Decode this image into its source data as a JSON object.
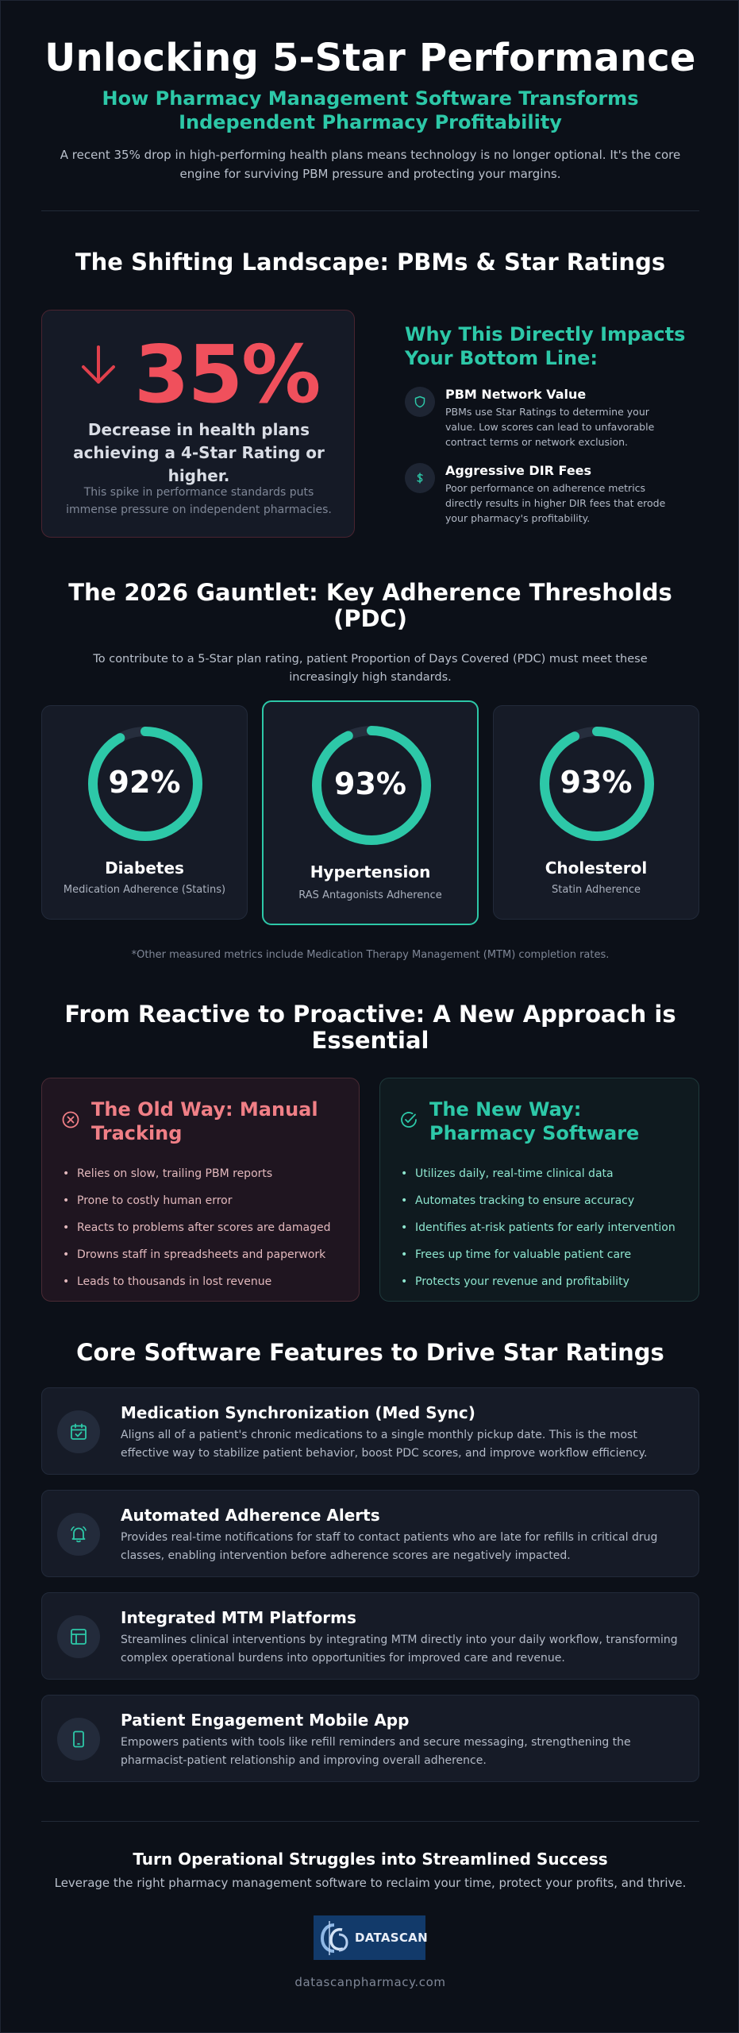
{
  "hero": {
    "title": "Unlocking 5-Star Performance",
    "subtitle_line1": "How Pharmacy Management Software Transforms",
    "subtitle_line2": "Independent Pharmacy Profitability",
    "description": "A recent 35% drop in high-performing health plans means technology is no longer optional. It's the core engine for surviving PBM pressure and protecting your margins."
  },
  "landscape": {
    "title": "The Shifting Landscape: PBMs & Star Ratings",
    "stat": {
      "value": "35%",
      "label": "Decrease in health plans achieving a 4-Star Rating or higher.",
      "note": "This spike in performance standards puts immense pressure on independent pharmacies."
    },
    "why": {
      "title": "Why This Directly Impacts Your Bottom Line:",
      "items": [
        {
          "icon": "shield-icon",
          "title": "PBM Network Value",
          "text": "PBMs use Star Ratings to determine your value. Low scores can lead to unfavorable contract terms or network exclusion."
        },
        {
          "icon": "dollar-icon",
          "title": "Aggressive DIR Fees",
          "text": "Poor performance on adherence metrics directly results in higher DIR fees that erode your pharmacy's profitability."
        }
      ]
    }
  },
  "thresholds": {
    "title_line1": "The 2026 Gauntlet: Key Adherence Thresholds",
    "title_line2": "(PDC)",
    "intro": "To contribute to a 5-Star plan rating, patient Proportion of Days Covered (PDC) must meet these increasingly high standards.",
    "cards": [
      {
        "value": "92%",
        "fraction": 0.92,
        "name": "Diabetes",
        "sub": "Medication Adherence (Statins)"
      },
      {
        "value": "93%",
        "fraction": 0.93,
        "name": "Hypertension",
        "sub": "RAS Antagonists Adherence"
      },
      {
        "value": "93%",
        "fraction": 0.93,
        "name": "Cholesterol",
        "sub": "Statin Adherence"
      }
    ],
    "footnote": "*Other measured metrics include Medication Therapy Management (MTM) completion rates."
  },
  "approach": {
    "title_line1": "From Reactive to Proactive: A New Approach is",
    "title_line2": "Essential",
    "old": {
      "title_line1": "The Old Way: Manual",
      "title_line2": "Tracking",
      "items": [
        "Relies on slow, trailing PBM reports",
        "Prone to costly human error",
        "Reacts to problems after scores are damaged",
        "Drowns staff in spreadsheets and paperwork",
        "Leads to thousands in lost revenue"
      ]
    },
    "new": {
      "title_line1": "The New Way:",
      "title_line2": "Pharmacy Software",
      "items": [
        "Utilizes daily, real-time clinical data",
        "Automates tracking to ensure accuracy",
        "Identifies at-risk patients for early intervention",
        "Frees up time for valuable patient care",
        "Protects your revenue and profitability"
      ]
    }
  },
  "features": {
    "title": "Core Software Features to Drive Star Ratings",
    "items": [
      {
        "icon": "calendar-check-icon",
        "title": "Medication Synchronization (Med Sync)",
        "text": "Aligns all of a patient's chronic medications to a single monthly pickup date. This is the most effective way to stabilize patient behavior, boost PDC scores, and improve workflow efficiency."
      },
      {
        "icon": "bell-icon",
        "title": "Automated Adherence Alerts",
        "text": "Provides real-time notifications for staff to contact patients who are late for refills in critical drug classes, enabling intervention before adherence scores are negatively impacted."
      },
      {
        "icon": "layout-icon",
        "title": "Integrated MTM Platforms",
        "text": "Streamlines clinical interventions by integrating MTM directly into your daily workflow, transforming complex operational burdens into opportunities for improved care and revenue."
      },
      {
        "icon": "smartphone-icon",
        "title": "Patient Engagement Mobile App",
        "text": "Empowers patients with tools like refill reminders and secure messaging, strengthening the pharmacist-patient relationship and improving overall adherence."
      }
    ]
  },
  "cta": {
    "title": "Turn Operational Struggles into Streamlined Success",
    "text": "Leverage the right pharmacy management software to reclaim your time, protect your profits, and thrive.",
    "logo_text": "DATASCAN",
    "site": "datascanpharmacy.com"
  },
  "colors": {
    "accent": "#2dc8a8",
    "alert": "#f0505c",
    "background": "#0c1018",
    "card": "#161b27"
  }
}
